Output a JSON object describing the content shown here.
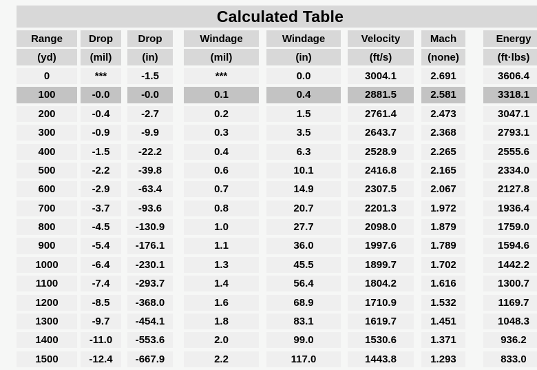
{
  "colors": {
    "page_bg": "#f6f7f6",
    "header_bg": "#d8d8d8",
    "row_bg": "#efefef",
    "highlight_bg": "#c3c3c3",
    "text": "#000000"
  },
  "chart_data": {
    "type": "table",
    "title": "Calculated Table",
    "columns": [
      {
        "label": "Range",
        "unit": "(yd)"
      },
      {
        "label": "Drop",
        "unit": "(mil)"
      },
      {
        "label": "Drop",
        "unit": "(in)"
      },
      {
        "label": "Windage",
        "unit": "(mil)"
      },
      {
        "label": "Windage",
        "unit": "(in)"
      },
      {
        "label": "Velocity",
        "unit": "(ft/s)"
      },
      {
        "label": "Mach",
        "unit": "(none)"
      },
      {
        "label": "Energy",
        "unit": "(ft·lbs)"
      }
    ],
    "highlighted_row_index": 1,
    "rows": [
      [
        "0",
        "***",
        "-1.5",
        "***",
        "0.0",
        "3004.1",
        "2.691",
        "3606.4"
      ],
      [
        "100",
        "-0.0",
        "-0.0",
        "0.1",
        "0.4",
        "2881.5",
        "2.581",
        "3318.1"
      ],
      [
        "200",
        "-0.4",
        "-2.7",
        "0.2",
        "1.5",
        "2761.4",
        "2.473",
        "3047.1"
      ],
      [
        "300",
        "-0.9",
        "-9.9",
        "0.3",
        "3.5",
        "2643.7",
        "2.368",
        "2793.1"
      ],
      [
        "400",
        "-1.5",
        "-22.2",
        "0.4",
        "6.3",
        "2528.9",
        "2.265",
        "2555.6"
      ],
      [
        "500",
        "-2.2",
        "-39.8",
        "0.6",
        "10.1",
        "2416.8",
        "2.165",
        "2334.0"
      ],
      [
        "600",
        "-2.9",
        "-63.4",
        "0.7",
        "14.9",
        "2307.5",
        "2.067",
        "2127.8"
      ],
      [
        "700",
        "-3.7",
        "-93.6",
        "0.8",
        "20.7",
        "2201.3",
        "1.972",
        "1936.4"
      ],
      [
        "800",
        "-4.5",
        "-130.9",
        "1.0",
        "27.7",
        "2098.0",
        "1.879",
        "1759.0"
      ],
      [
        "900",
        "-5.4",
        "-176.1",
        "1.1",
        "36.0",
        "1997.6",
        "1.789",
        "1594.6"
      ],
      [
        "1000",
        "-6.4",
        "-230.1",
        "1.3",
        "45.5",
        "1899.7",
        "1.702",
        "1442.2"
      ],
      [
        "1100",
        "-7.4",
        "-293.7",
        "1.4",
        "56.4",
        "1804.2",
        "1.616",
        "1300.7"
      ],
      [
        "1200",
        "-8.5",
        "-368.0",
        "1.6",
        "68.9",
        "1710.9",
        "1.532",
        "1169.7"
      ],
      [
        "1300",
        "-9.7",
        "-454.1",
        "1.8",
        "83.1",
        "1619.7",
        "1.451",
        "1048.3"
      ],
      [
        "1400",
        "-11.0",
        "-553.6",
        "2.0",
        "99.0",
        "1530.6",
        "1.371",
        "936.2"
      ],
      [
        "1500",
        "-12.4",
        "-667.9",
        "2.2",
        "117.0",
        "1443.8",
        "1.293",
        "833.0"
      ]
    ]
  }
}
